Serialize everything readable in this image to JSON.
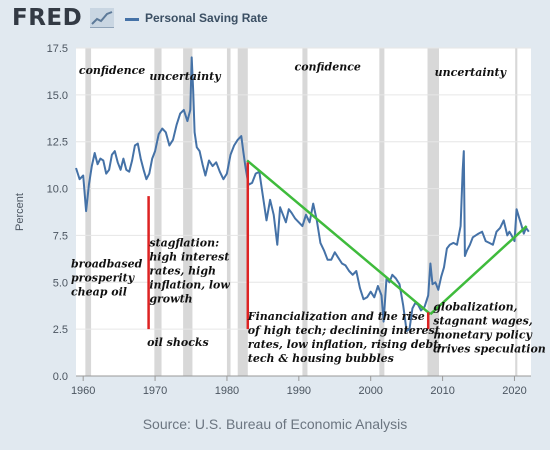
{
  "header": {
    "logo": "FRED",
    "legend_label": "Personal Saving Rate"
  },
  "source": "Source: U.S. Bureau of Economic Analysis",
  "chart_data": {
    "type": "line",
    "title": "",
    "ylabel": "Percent",
    "xlabel": "",
    "xlim": [
      1959,
      2022.3
    ],
    "ylim": [
      0,
      17.5
    ],
    "yticks": [
      "0.0",
      "2.5",
      "5.0",
      "7.5",
      "10.0",
      "12.5",
      "15.0",
      "17.5"
    ],
    "xticks": [
      "1960",
      "1970",
      "1980",
      "1990",
      "2000",
      "2010",
      "2020"
    ],
    "colors": {
      "series": "#4572a7",
      "trend": "#3fbb3c",
      "marker": "#dd2222",
      "recession": "#d8d8d8"
    },
    "recessions": [
      [
        1960.3,
        1961.1
      ],
      [
        1969.9,
        1970.9
      ],
      [
        1973.9,
        1975.2
      ],
      [
        1980.0,
        1980.5
      ],
      [
        1981.5,
        1982.9
      ],
      [
        1990.5,
        1991.2
      ],
      [
        2001.2,
        2001.9
      ],
      [
        2007.9,
        2009.5
      ],
      [
        2020.1,
        2020.4
      ]
    ],
    "series": [
      {
        "name": "Personal Saving Rate",
        "x": [
          1959.0,
          1959.5,
          1960.0,
          1960.4,
          1960.8,
          1961.2,
          1961.6,
          1962.0,
          1962.4,
          1962.8,
          1963.2,
          1963.6,
          1964.0,
          1964.4,
          1964.8,
          1965.2,
          1965.6,
          1966.0,
          1966.4,
          1966.8,
          1967.2,
          1967.6,
          1968.0,
          1968.4,
          1968.8,
          1969.2,
          1969.6,
          1970.0,
          1970.5,
          1971.0,
          1971.5,
          1972.0,
          1972.5,
          1973.0,
          1973.5,
          1974.0,
          1974.5,
          1974.9,
          1975.1,
          1975.3,
          1975.5,
          1975.8,
          1976.2,
          1976.6,
          1977.0,
          1977.5,
          1978.0,
          1978.5,
          1979.0,
          1979.5,
          1980.0,
          1980.5,
          1981.0,
          1981.5,
          1982.0,
          1982.3,
          1982.6,
          1983.0,
          1983.5,
          1984.0,
          1984.5,
          1985.0,
          1985.5,
          1986.0,
          1986.5,
          1987.0,
          1987.4,
          1987.8,
          1988.2,
          1988.6,
          1989.0,
          1989.5,
          1990.0,
          1990.5,
          1991.0,
          1991.5,
          1992.0,
          1992.5,
          1993.0,
          1993.5,
          1994.0,
          1994.5,
          1995.0,
          1995.5,
          1996.0,
          1996.5,
          1997.0,
          1997.5,
          1998.0,
          1998.5,
          1999.0,
          1999.5,
          2000.0,
          2000.5,
          2001.0,
          2001.5,
          2001.8,
          2002.2,
          2002.6,
          2003.0,
          2003.5,
          2004.0,
          2004.5,
          2005.0,
          2005.4,
          2005.8,
          2006.2,
          2006.6,
          2007.0,
          2007.5,
          2008.0,
          2008.3,
          2008.6,
          2009.0,
          2009.4,
          2009.8,
          2010.2,
          2010.6,
          2011.0,
          2011.5,
          2012.0,
          2012.5,
          2012.8,
          2012.95,
          2013.1,
          2013.4,
          2013.8,
          2014.2,
          2014.6,
          2015.0,
          2015.5,
          2016.0,
          2016.5,
          2017.0,
          2017.5,
          2018.0,
          2018.5,
          2019.0,
          2019.3,
          2019.6,
          2020.0,
          2020.3,
          2020.6,
          2021.0,
          2021.3,
          2021.6,
          2022.0
        ],
        "values": [
          11.1,
          10.5,
          10.7,
          8.8,
          10.2,
          11.2,
          11.9,
          11.3,
          11.6,
          11.5,
          10.8,
          11.0,
          11.8,
          12.0,
          11.4,
          11.0,
          11.6,
          11.0,
          10.9,
          11.5,
          12.3,
          12.4,
          11.6,
          11.0,
          10.5,
          10.8,
          11.6,
          12.0,
          12.9,
          13.2,
          13.0,
          12.3,
          12.6,
          13.4,
          14.0,
          14.2,
          13.6,
          14.2,
          17.0,
          15.2,
          13.0,
          12.2,
          12.0,
          11.3,
          10.7,
          11.5,
          11.2,
          11.4,
          10.9,
          10.5,
          10.8,
          11.8,
          12.3,
          12.6,
          12.8,
          11.9,
          11.1,
          10.2,
          10.3,
          10.8,
          10.9,
          9.6,
          8.3,
          9.4,
          8.6,
          7.0,
          9.0,
          8.6,
          8.2,
          8.9,
          8.7,
          8.4,
          8.2,
          8.0,
          8.6,
          8.2,
          9.2,
          8.3,
          7.1,
          6.7,
          6.2,
          6.2,
          6.6,
          6.3,
          6.0,
          5.9,
          5.6,
          5.4,
          5.6,
          4.7,
          4.1,
          4.2,
          4.5,
          4.2,
          4.8,
          4.3,
          2.9,
          5.2,
          5.0,
          5.4,
          5.2,
          4.9,
          3.8,
          2.4,
          2.5,
          3.6,
          3.9,
          3.8,
          3.5,
          3.7,
          4.3,
          6.0,
          4.9,
          5.0,
          4.6,
          5.3,
          5.8,
          6.8,
          7.0,
          7.1,
          7.0,
          8.0,
          11.0,
          12.0,
          6.4,
          6.7,
          7.0,
          7.4,
          7.5,
          7.6,
          7.7,
          7.2,
          7.1,
          7.0,
          7.7,
          7.9,
          8.3,
          7.5,
          7.7,
          7.5,
          7.2,
          8.9,
          8.5,
          8.0,
          7.6,
          7.9,
          7.7
        ]
      }
    ],
    "trendlines": [
      {
        "from": [
          1982.8,
          11.5
        ],
        "to": [
          2008.3,
          3.3
        ]
      },
      {
        "from": [
          2008.3,
          3.3
        ],
        "to": [
          2021.7,
          8.0
        ]
      }
    ],
    "markers": [
      {
        "x": 1969.1,
        "y1": 2.5,
        "y2": 9.6
      },
      {
        "x": 1982.9,
        "y1": 2.5,
        "y2": 11.4
      },
      {
        "x": 2008.0,
        "y1": 2.5,
        "y2": 3.4
      }
    ],
    "annotations": [
      {
        "year": 1959.4,
        "value": 16.1,
        "lines": [
          "confidence"
        ]
      },
      {
        "year": 1969.2,
        "value": 15.8,
        "lines": [
          "uncertainty"
        ]
      },
      {
        "year": 1989.4,
        "value": 16.3,
        "lines": [
          "confidence"
        ]
      },
      {
        "year": 2008.9,
        "value": 16.0,
        "lines": [
          "uncertainty"
        ]
      },
      {
        "year": 1958.3,
        "value": 5.8,
        "lines": [
          "broadbased",
          "prosperity",
          "cheap oil"
        ]
      },
      {
        "year": 1969.2,
        "value": 6.9,
        "lines": [
          "stagflation:",
          "high interest",
          "rates, high",
          "inflation, low",
          "growth"
        ]
      },
      {
        "year": 1968.9,
        "value": 1.6,
        "lines": [
          "oil shocks"
        ]
      },
      {
        "year": 1982.9,
        "value": 3.0,
        "lines": [
          "Financialization and the rise",
          "of high tech; declining interest",
          "rates, low inflation, rising debt,",
          "tech & housing bubbles"
        ]
      },
      {
        "year": 2008.7,
        "value": 3.5,
        "lines": [
          "globalization,",
          "stagnant wages,",
          "monetary policy",
          "drives speculation"
        ]
      }
    ]
  }
}
